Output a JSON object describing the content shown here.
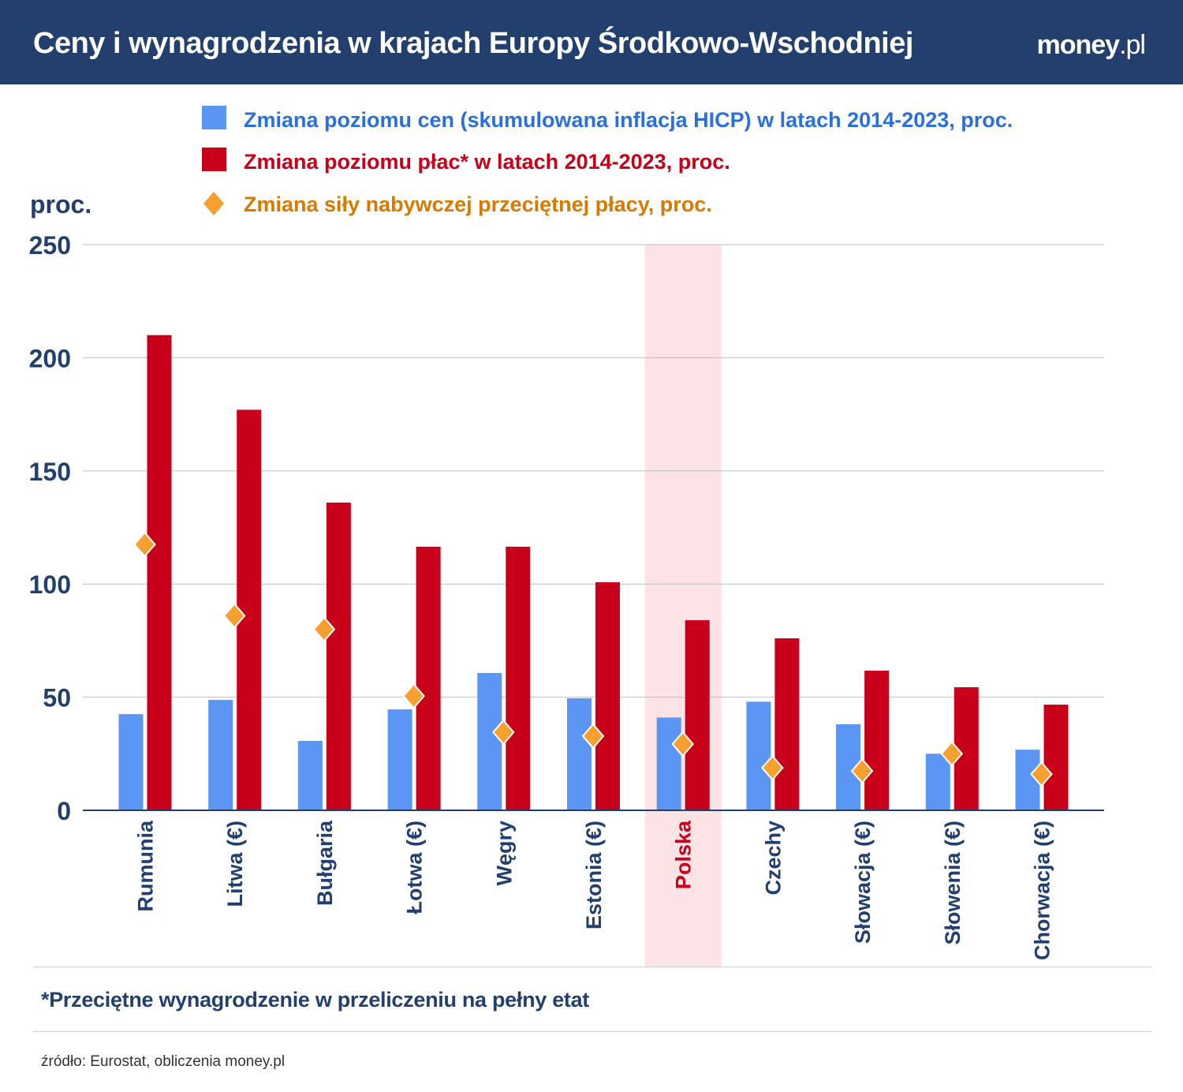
{
  "header": {
    "title": "Ceny i wynagrodzenia w krajach Europy Środkowo-Wschodniej",
    "logo": "money.pl"
  },
  "chart_data": {
    "type": "bar",
    "title": "Ceny i wynagrodzenia w krajach Europy Środkowo-Wschodniej",
    "ylabel": "proc.",
    "ylim": [
      0,
      250
    ],
    "yticks": [
      0,
      50,
      100,
      150,
      200,
      250
    ],
    "grid": true,
    "legend_placement": "top",
    "highlight_category": "Polska",
    "categories": [
      "Rumunia",
      "Litwa (€)",
      "Bułgaria",
      "Łotwa (€)",
      "Węgry",
      "Estonia (€)",
      "Polska",
      "Czechy",
      "Słowacja (€)",
      "Słowenia (€)",
      "Chorwacja (€)"
    ],
    "series": [
      {
        "name": "Zmiana poziomu cen (skumulowana inflacja HICP) w latach 2014-2023, proc.",
        "kind": "bar",
        "color": "#5b96f5",
        "values": [
          42.5,
          48.8,
          30.7,
          44.6,
          60.7,
          49.5,
          41,
          48,
          38,
          25,
          26.8
        ]
      },
      {
        "name": "Zmiana poziomu płac* w latach 2014-2023, proc.",
        "kind": "bar",
        "color": "#c8001a",
        "values": [
          210,
          177,
          136,
          116.5,
          116.5,
          100.8,
          84,
          76,
          61.7,
          54.4,
          46.7
        ]
      },
      {
        "name": "Zmiana siły nabywczej przeciętnej płacy, proc.",
        "kind": "diamond",
        "color": "#f7a030",
        "label_color": "#d97a00",
        "values": [
          117.5,
          86,
          80,
          50.5,
          34.5,
          32.8,
          29.3,
          18.8,
          17.4,
          25,
          16
        ]
      }
    ]
  },
  "footnote": "*Przeciętne wynagrodzenie w przeliczeniu na pełny etat",
  "source": "źródło: Eurostat, obliczenia money.pl"
}
